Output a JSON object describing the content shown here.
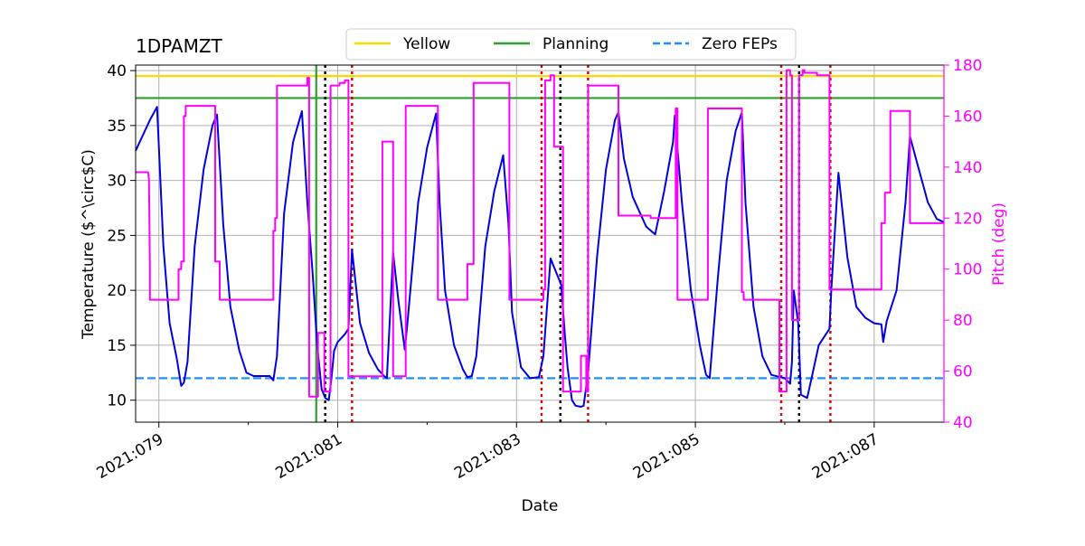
{
  "chart_data": {
    "type": "line",
    "title": "1DPAMZT",
    "xlabel": "Date",
    "ylabel": "Temperature ($^\\circ$C)",
    "y2label": "Pitch (deg)",
    "xlim": [
      78.74,
      87.78
    ],
    "ylim": [
      8.0,
      40.5
    ],
    "y2lim": [
      40,
      180
    ],
    "x_ticks": [
      {
        "value": 79,
        "label": "2021:079"
      },
      {
        "value": 81,
        "label": "2021:081"
      },
      {
        "value": 83,
        "label": "2021:083"
      },
      {
        "value": 85,
        "label": "2021:085"
      },
      {
        "value": 87,
        "label": "2021:087"
      }
    ],
    "x_minor_ticks": [
      80,
      82,
      84,
      86
    ],
    "y_ticks": [
      10,
      15,
      20,
      25,
      30,
      35,
      40
    ],
    "y2_ticks": [
      40,
      60,
      80,
      100,
      120,
      140,
      160,
      180
    ],
    "grid": true,
    "legend": {
      "placement": "top-center",
      "entries": [
        {
          "label": "Yellow",
          "color": "#ffd700",
          "style": "solid"
        },
        {
          "label": "Planning",
          "color": "#2ca02c",
          "style": "solid"
        },
        {
          "label": "Zero FEPs",
          "color": "#1e90ff",
          "style": "dashed"
        }
      ]
    },
    "hlines": [
      {
        "name": "Yellow",
        "y": 39.5,
        "color": "#ffd700",
        "style": "solid"
      },
      {
        "name": "Planning",
        "y": 37.5,
        "color": "#2ca02c",
        "style": "solid"
      },
      {
        "name": "Zero FEPs",
        "y": 12.0,
        "color": "#1e90ff",
        "style": "dashed"
      }
    ],
    "vlines": [
      {
        "x": 80.76,
        "color": "#2ca02c",
        "style": "solid"
      },
      {
        "x": 80.86,
        "color": "#000000",
        "style": "dotted"
      },
      {
        "x": 81.16,
        "color": "#e00000",
        "style": "dotted"
      },
      {
        "x": 83.28,
        "color": "#e00000",
        "style": "dotted"
      },
      {
        "x": 83.49,
        "color": "#000000",
        "style": "dotted"
      },
      {
        "x": 83.8,
        "color": "#e00000",
        "style": "dotted"
      },
      {
        "x": 85.96,
        "color": "#e00000",
        "style": "dotted"
      },
      {
        "x": 86.16,
        "color": "#000000",
        "style": "dotted"
      },
      {
        "x": 86.51,
        "color": "#e00000",
        "style": "dotted"
      }
    ],
    "series": [
      {
        "name": "1DPAMZT",
        "axis": "left",
        "color": "#0000e0",
        "x": [
          78.74,
          78.9,
          78.98,
          79.05,
          79.12,
          79.2,
          79.25,
          79.28,
          79.32,
          79.4,
          79.5,
          79.6,
          79.65,
          79.72,
          79.8,
          79.9,
          79.98,
          80.06,
          80.16,
          80.24,
          80.28,
          80.32,
          80.4,
          80.5,
          80.6,
          80.66,
          80.72,
          80.77,
          80.82,
          80.86,
          80.9,
          80.93,
          80.96,
          81.0,
          81.08,
          81.12,
          81.16,
          81.25,
          81.35,
          81.45,
          81.52,
          81.55,
          81.62,
          81.68,
          81.75,
          81.78,
          81.9,
          82.0,
          82.1,
          82.14,
          82.2,
          82.3,
          82.4,
          82.45,
          82.5,
          82.55,
          82.65,
          82.75,
          82.85,
          82.91,
          82.95,
          83.05,
          83.15,
          83.25,
          83.3,
          83.38,
          83.5,
          83.54,
          83.57,
          83.62,
          83.66,
          83.72,
          83.75,
          83.8,
          83.9,
          84.0,
          84.1,
          84.14,
          84.2,
          84.3,
          84.45,
          84.52,
          84.55,
          84.65,
          84.75,
          84.77,
          84.85,
          84.95,
          85.05,
          85.12,
          85.16,
          85.25,
          85.35,
          85.45,
          85.52,
          85.56,
          85.65,
          85.75,
          85.85,
          85.95,
          86.0,
          86.06,
          86.08,
          86.1,
          86.15,
          86.18,
          86.25,
          86.3,
          86.38,
          86.5,
          86.52,
          86.6,
          86.7,
          86.8,
          86.9,
          87.0,
          87.08,
          87.1,
          87.14,
          87.25,
          87.35,
          87.4,
          87.5,
          87.6,
          87.7,
          87.78
        ],
        "values": [
          32.7,
          35.5,
          36.7,
          24.0,
          17.0,
          13.8,
          11.3,
          11.6,
          13.5,
          24.0,
          31.0,
          35.0,
          36.0,
          26.0,
          18.5,
          14.5,
          12.5,
          12.2,
          12.2,
          12.2,
          11.8,
          14.0,
          27.0,
          33.5,
          36.3,
          28.0,
          21.5,
          15.0,
          11.0,
          10.2,
          10.0,
          12.0,
          14.5,
          15.3,
          16.0,
          16.5,
          23.7,
          17.0,
          14.3,
          12.8,
          12.2,
          12.0,
          23.4,
          19.0,
          14.6,
          17.0,
          28.0,
          33.0,
          36.1,
          28.0,
          20.0,
          15.0,
          12.8,
          12.1,
          12.2,
          14.0,
          24.0,
          29.0,
          32.3,
          26.0,
          18.0,
          13.0,
          12.0,
          12.1,
          14.0,
          22.9,
          20.5,
          16.0,
          13.0,
          10.0,
          9.5,
          9.4,
          9.5,
          12.5,
          23.0,
          31.0,
          35.5,
          36.2,
          32.0,
          28.5,
          25.8,
          25.3,
          25.1,
          29.0,
          33.5,
          35.9,
          28.0,
          20.0,
          15.0,
          12.3,
          12.0,
          21.0,
          30.0,
          34.5,
          36.2,
          28.0,
          18.5,
          14.0,
          12.3,
          12.1,
          12.0,
          11.5,
          13.5,
          20.0,
          17.0,
          10.5,
          10.2,
          12.0,
          15.0,
          16.5,
          20.0,
          30.7,
          23.0,
          18.5,
          17.5,
          17.0,
          16.9,
          15.3,
          17.2,
          20.0,
          28.0,
          34.0,
          31.0,
          28.0,
          26.5,
          26.2
        ]
      },
      {
        "name": "Pitch",
        "axis": "right",
        "color": "#ff00ff",
        "x": [
          78.74,
          78.88,
          78.89,
          78.9,
          78.9,
          79.22,
          79.22,
          79.25,
          79.25,
          79.28,
          79.28,
          79.3,
          79.3,
          79.63,
          79.63,
          79.68,
          79.68,
          80.28,
          80.28,
          80.3,
          80.3,
          80.32,
          80.32,
          80.66,
          80.66,
          80.68,
          80.68,
          80.78,
          80.78,
          80.85,
          80.85,
          80.92,
          80.92,
          81.02,
          81.02,
          81.08,
          81.08,
          81.12,
          81.12,
          81.16,
          81.16,
          81.5,
          81.5,
          81.52,
          81.52,
          81.62,
          81.62,
          81.76,
          81.76,
          82.12,
          82.12,
          82.45,
          82.45,
          82.52,
          82.52,
          82.56,
          82.56,
          82.92,
          82.92,
          83.3,
          83.3,
          83.32,
          83.32,
          83.38,
          83.38,
          83.42,
          83.42,
          83.52,
          83.52,
          83.7,
          83.7,
          83.72,
          83.72,
          83.78,
          83.78,
          83.8,
          83.8,
          84.14,
          84.14,
          84.5,
          84.5,
          84.78,
          84.78,
          84.8,
          84.8,
          85.14,
          85.14,
          85.52,
          85.52,
          85.54,
          85.54,
          85.56,
          85.56,
          85.94,
          85.94,
          86.0,
          86.0,
          86.02,
          86.02,
          86.06,
          86.06,
          86.08,
          86.08,
          86.16,
          86.16,
          86.2,
          86.2,
          86.22,
          86.22,
          86.36,
          86.36,
          86.48,
          86.48,
          86.5,
          86.5,
          86.52,
          86.52,
          87.08,
          87.08,
          87.12,
          87.12,
          87.18,
          87.18,
          87.4,
          87.4,
          87.78
        ],
        "values": [
          138,
          138,
          135,
          100,
          88,
          88,
          100,
          100,
          103,
          103,
          160,
          160,
          164,
          164,
          103,
          103,
          88,
          88,
          115,
          115,
          120,
          120,
          172,
          172,
          175,
          175,
          50,
          50,
          75,
          75,
          52,
          52,
          172,
          172,
          173,
          173,
          174,
          174,
          58,
          58,
          58,
          58,
          150,
          150,
          150,
          150,
          58,
          58,
          164,
          164,
          88,
          88,
          102,
          102,
          173,
          173,
          173,
          173,
          88,
          88,
          92,
          92,
          174,
          174,
          176,
          176,
          148,
          148,
          52,
          52,
          52,
          52,
          66,
          66,
          52,
          52,
          172,
          172,
          121,
          121,
          120,
          120,
          163,
          163,
          88,
          88,
          163,
          163,
          91,
          91,
          88,
          88,
          88,
          88,
          52,
          52,
          52,
          52,
          178,
          178,
          176,
          176,
          80,
          80,
          176,
          176,
          178,
          178,
          177,
          177,
          176,
          176,
          176,
          176,
          92,
          92,
          92,
          92,
          118,
          118,
          130,
          130,
          162,
          162,
          118,
          118
        ]
      }
    ]
  }
}
